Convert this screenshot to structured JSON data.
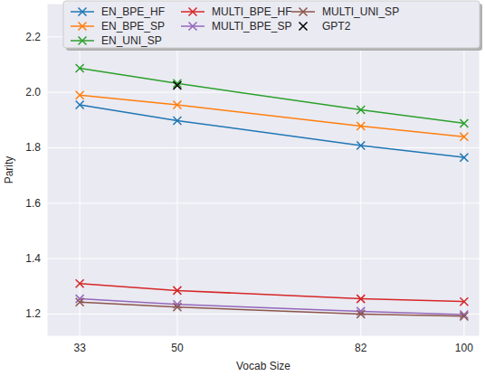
{
  "chart_data": {
    "type": "line",
    "x_label": "Vocab Size",
    "y_label": "Parity",
    "x": [
      33,
      50,
      82,
      100
    ],
    "xlim": [
      27.3,
      102.7
    ],
    "xticks": [
      33,
      50,
      82,
      100
    ],
    "ylim": [
      1.12,
      2.32
    ],
    "yticks": [
      {
        "value": 1.2,
        "label": "1.2"
      },
      {
        "value": 1.4,
        "label": "1.4"
      },
      {
        "value": 1.6,
        "label": "1.6"
      },
      {
        "value": 1.8,
        "label": "1.8"
      },
      {
        "value": 2.0,
        "label": "2.0"
      },
      {
        "value": 2.2,
        "label": "2.2"
      }
    ],
    "grid": true,
    "legend": "upper center",
    "marker": "x",
    "series": [
      {
        "name": "EN_BPE_HF",
        "color": "#1f77b4",
        "values": [
          1.955,
          1.898,
          1.808,
          1.765
        ]
      },
      {
        "name": "EN_BPE_SP",
        "color": "#ff7f0e",
        "values": [
          1.99,
          1.955,
          1.878,
          1.84
        ]
      },
      {
        "name": "EN_UNI_SP",
        "color": "#2ca02c",
        "values": [
          2.087,
          2.032,
          1.937,
          1.888
        ]
      },
      {
        "name": "MULTI_BPE_HF",
        "color": "#d62728",
        "values": [
          1.31,
          1.285,
          1.255,
          1.245
        ]
      },
      {
        "name": "MULTI_BPE_SP",
        "color": "#9467bd",
        "values": [
          1.255,
          1.235,
          1.21,
          1.198
        ]
      },
      {
        "name": "MULTI_UNI_SP",
        "color": "#8c564b",
        "values": [
          1.243,
          1.225,
          1.2,
          1.192
        ]
      },
      {
        "name": "GPT2",
        "color": "#000000",
        "type": "scatter",
        "values": [
          null,
          2.025,
          null,
          null
        ]
      }
    ]
  }
}
